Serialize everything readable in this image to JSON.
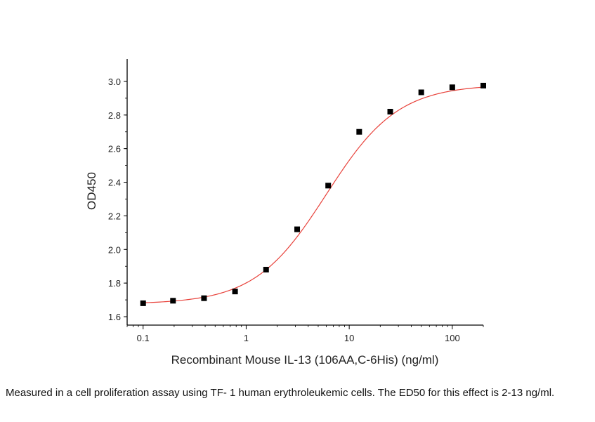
{
  "chart_data": {
    "type": "scatter",
    "xscale": "log",
    "xlim": [
      0.07,
      200
    ],
    "ylim": [
      1.55,
      3.1
    ],
    "xticks": [
      {
        "value": 0.1,
        "label": "0.1"
      },
      {
        "value": 1,
        "label": "1"
      },
      {
        "value": 10,
        "label": "10"
      },
      {
        "value": 100,
        "label": "100"
      }
    ],
    "yticks": [
      {
        "value": 1.6,
        "label": "1.6"
      },
      {
        "value": 1.8,
        "label": "1.8"
      },
      {
        "value": 2.0,
        "label": "2.0"
      },
      {
        "value": 2.2,
        "label": "2.2"
      },
      {
        "value": 2.4,
        "label": "2.4"
      },
      {
        "value": 2.6,
        "label": "2.6"
      },
      {
        "value": 2.8,
        "label": "2.8"
      },
      {
        "value": 3.0,
        "label": "3.0"
      }
    ],
    "xlabel": "Recombinant Mouse IL-13 (106AA,C-6His) (ng/ml)",
    "ylabel": "OD450",
    "grid": false,
    "series": [
      {
        "x": [
          0.1,
          0.195,
          0.39,
          0.78,
          1.56,
          3.125,
          6.25,
          12.5,
          25,
          50,
          100,
          200
        ],
        "y": [
          1.68,
          1.695,
          1.71,
          1.75,
          1.88,
          2.12,
          2.38,
          2.7,
          2.82,
          2.935,
          2.965,
          2.975
        ],
        "marker": "square",
        "marker_color": "#000000",
        "fit_color": "#e8413a"
      }
    ]
  },
  "caption": "Measured in a cell proliferation assay using TF- 1 human erythroleukemic cells. The ED50 for this effect is 2-13 ng/ml."
}
